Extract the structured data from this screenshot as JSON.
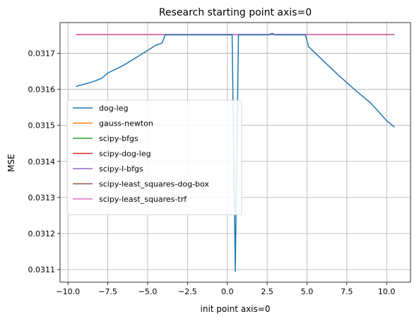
{
  "chart_data": {
    "type": "line",
    "title": "Research starting point axis=0",
    "xlabel": "init point axis=0",
    "ylabel": "MSE",
    "xlim": [
      -10.5,
      11.5
    ],
    "ylim": [
      0.031065,
      0.031785
    ],
    "xticks": [
      -10.0,
      -7.5,
      -5.0,
      -2.5,
      0.0,
      2.5,
      5.0,
      7.5,
      10.0
    ],
    "xtick_labels": [
      "−10.0",
      "−7.5",
      "−5.0",
      "−2.5",
      "0.0",
      "2.5",
      "5.0",
      "7.5",
      "10.0"
    ],
    "yticks": [
      0.0311,
      0.0312,
      0.0313,
      0.0314,
      0.0315,
      0.0316,
      0.0317
    ],
    "ytick_labels": [
      "0.0311",
      "0.0312",
      "0.0313",
      "0.0314",
      "0.0315",
      "0.0316",
      "0.0317"
    ],
    "grid": true,
    "legend_position": "center-left",
    "series": [
      {
        "name": "dog-leg",
        "color": "#1f77b4",
        "x": [
          -9.5,
          -8.5,
          -7.9,
          -7.5,
          -6.5,
          -5.5,
          -4.5,
          -4.1,
          -3.9,
          0.3,
          0.5,
          0.7,
          2.6,
          2.8,
          3.0,
          4.9,
          5.1,
          6.0,
          7.0,
          8.0,
          9.0,
          10.0,
          10.5
        ],
        "y": [
          0.031608,
          0.03162,
          0.03163,
          0.031645,
          0.031667,
          0.031694,
          0.031722,
          0.031728,
          0.031751,
          0.031751,
          0.031095,
          0.031751,
          0.031751,
          0.031755,
          0.031751,
          0.031751,
          0.031718,
          0.03168,
          0.031638,
          0.031599,
          0.031562,
          0.031513,
          0.031495
        ]
      },
      {
        "name": "gauss-newton",
        "color": "#ff7f0e",
        "x": [
          -9.5,
          10.5
        ],
        "y": [
          0.031752,
          0.031752
        ]
      },
      {
        "name": "scipy-bfgs",
        "color": "#2ca02c",
        "x": [
          -9.5,
          10.5
        ],
        "y": [
          0.031752,
          0.031752
        ]
      },
      {
        "name": "scipy-dog-leg",
        "color": "#d62728",
        "x": [
          -9.5,
          10.5
        ],
        "y": [
          0.031752,
          0.031752
        ]
      },
      {
        "name": "scipy-l-bfgs",
        "color": "#9467bd",
        "x": [
          -9.5,
          10.5
        ],
        "y": [
          0.031752,
          0.031752
        ]
      },
      {
        "name": "scipy-least_squares-dog-box",
        "color": "#8c564b",
        "x": [
          -9.5,
          10.5
        ],
        "y": [
          0.031752,
          0.031752
        ]
      },
      {
        "name": "scipy-least_squares-trf",
        "color": "#e377c2",
        "x": [
          -9.5,
          10.5
        ],
        "y": [
          0.031752,
          0.031752
        ]
      }
    ]
  }
}
